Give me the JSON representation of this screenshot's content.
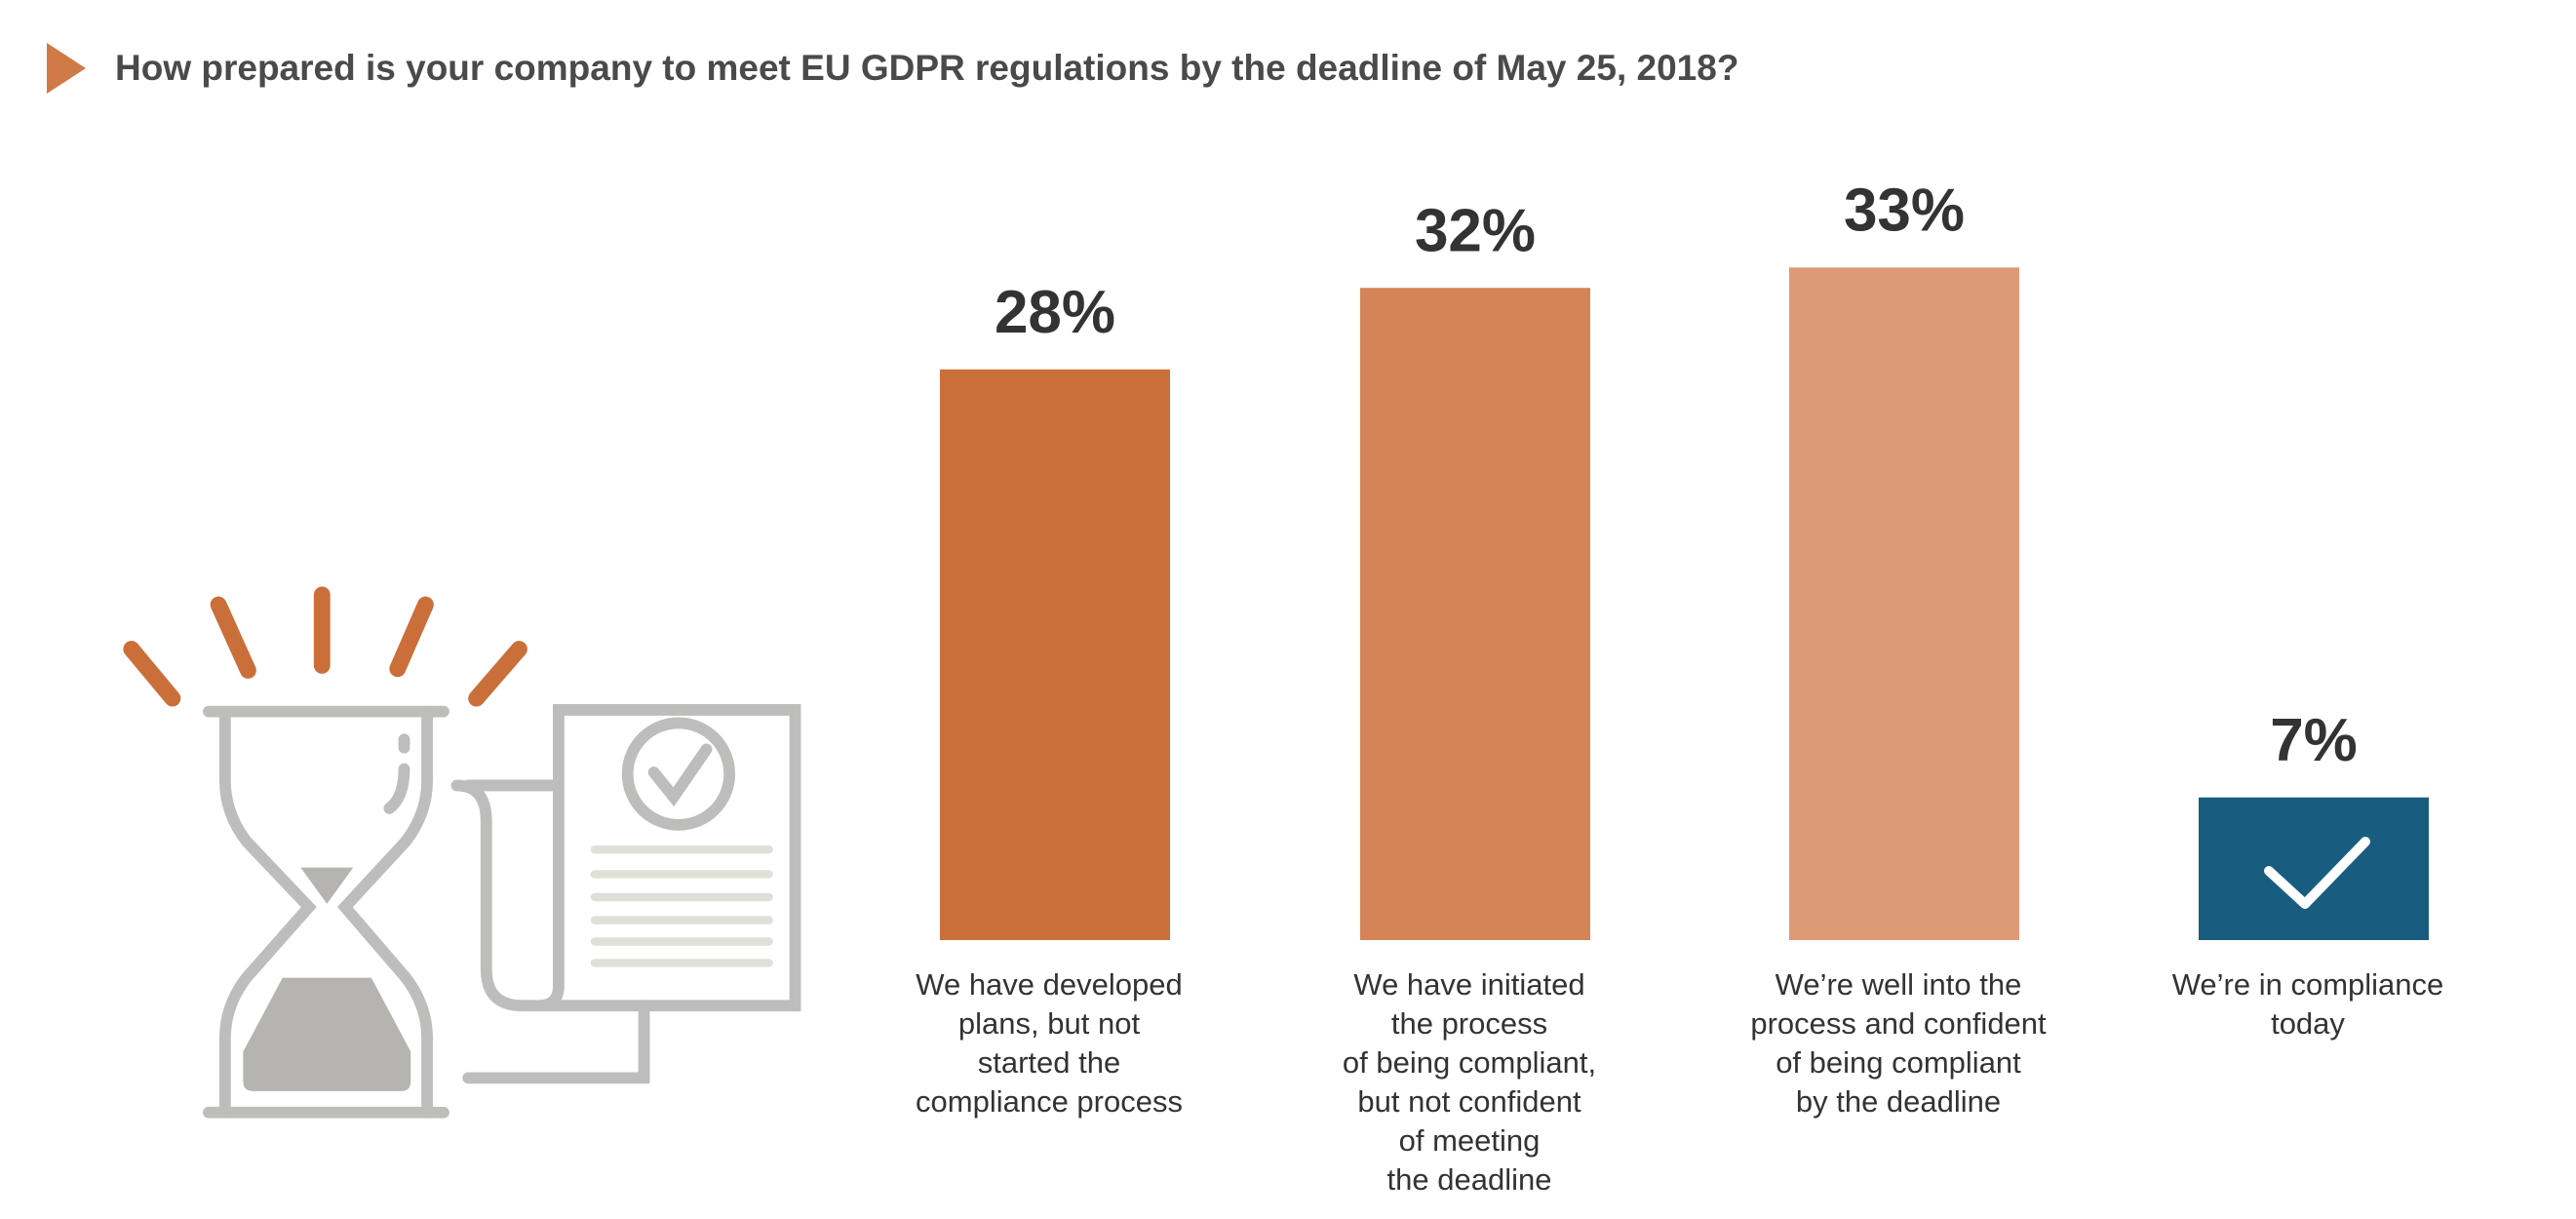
{
  "chart_data": {
    "type": "bar",
    "title": "How prepared is your company to meet EU GDPR regulations by the deadline of May 25, 2018?",
    "categories": [
      [
        "We have developed",
        "plans, but not",
        "started the",
        "compliance process"
      ],
      [
        "We have initiated",
        "the process",
        "of being compliant,",
        "but not confident",
        "of meeting",
        "the deadline"
      ],
      [
        "We’re well into the",
        "process and confident",
        "of being compliant",
        "by the deadline"
      ],
      [
        "We’re in compliance",
        "today"
      ]
    ],
    "values": [
      28,
      32,
      33,
      7
    ],
    "value_labels": [
      "28%",
      "32%",
      "33%",
      "7%"
    ],
    "colors": [
      "#cb6f3a",
      "#d48456",
      "#dc9a76",
      "#185d80"
    ]
  }
}
